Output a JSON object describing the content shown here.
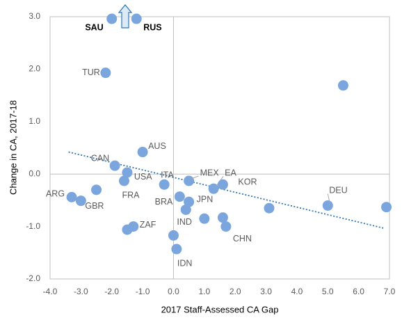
{
  "chart_data": {
    "type": "scatter",
    "x_label": "2017 Staff-Assessed CA Gap",
    "y_label": "Change in CA, 2017-18",
    "x": [
      -2.0,
      -1.2,
      -2.2,
      5.5,
      -1.0,
      -1.9,
      -1.5,
      -1.6,
      -0.3,
      -3.3,
      -3.0,
      -2.5,
      0.5,
      1.3,
      1.6,
      0.2,
      0.5,
      0.4,
      3.1,
      5.0,
      6.9,
      1.0,
      1.6,
      1.7,
      -1.3,
      -1.5,
      0.0,
      0.1
    ],
    "y": [
      2.96,
      2.96,
      1.93,
      1.69,
      0.42,
      0.16,
      0.03,
      -0.13,
      -0.2,
      -0.44,
      -0.51,
      -0.3,
      -0.13,
      -0.28,
      -0.2,
      -0.43,
      -0.53,
      -0.68,
      -0.65,
      -0.6,
      -0.63,
      -0.85,
      -0.83,
      -1.0,
      -1.0,
      -1.06,
      -1.17,
      -1.43
    ],
    "labels": [
      "SAU",
      "RUS",
      "TUR",
      null,
      "AUS",
      "CAN",
      "USA",
      "FRA",
      "ITA",
      "ARG",
      "GBR",
      null,
      "MEX",
      "EA",
      "KOR",
      "BRA",
      "JPN",
      "IND",
      null,
      "DEU",
      null,
      null,
      null,
      "CHN",
      "ZAF",
      null,
      null,
      "IDN"
    ],
    "color": "#7aa6dd",
    "trendline": {
      "x": [
        -3.4,
        6.8
      ],
      "y": [
        0.42,
        -1.03
      ],
      "color": "#2e75b6"
    },
    "xlim": [
      -4,
      7
    ],
    "ylim": [
      -2,
      3
    ],
    "xticks": [
      {
        "value": -4,
        "label": "-4.0"
      },
      {
        "value": -3,
        "label": "-3.0"
      },
      {
        "value": -2,
        "label": "-2.0"
      },
      {
        "value": -1,
        "label": "-1.0"
      },
      {
        "value": 0,
        "label": "0.0"
      },
      {
        "value": 1,
        "label": "1.0"
      },
      {
        "value": 2,
        "label": "2.0"
      },
      {
        "value": 3,
        "label": "3.0"
      },
      {
        "value": 4,
        "label": "4.0"
      },
      {
        "value": 5,
        "label": "5.0"
      },
      {
        "value": 6,
        "label": "6.0"
      },
      {
        "value": 7,
        "label": "7.0"
      }
    ],
    "yticks": [
      {
        "value": -2,
        "label": "-2.0"
      },
      {
        "value": -1,
        "label": "-1.0"
      },
      {
        "value": 0,
        "label": "0.0"
      },
      {
        "value": 1,
        "label": "1.0"
      },
      {
        "value": 2,
        "label": "2.0"
      },
      {
        "value": 3,
        "label": "3.0"
      }
    ],
    "grid": false
  }
}
